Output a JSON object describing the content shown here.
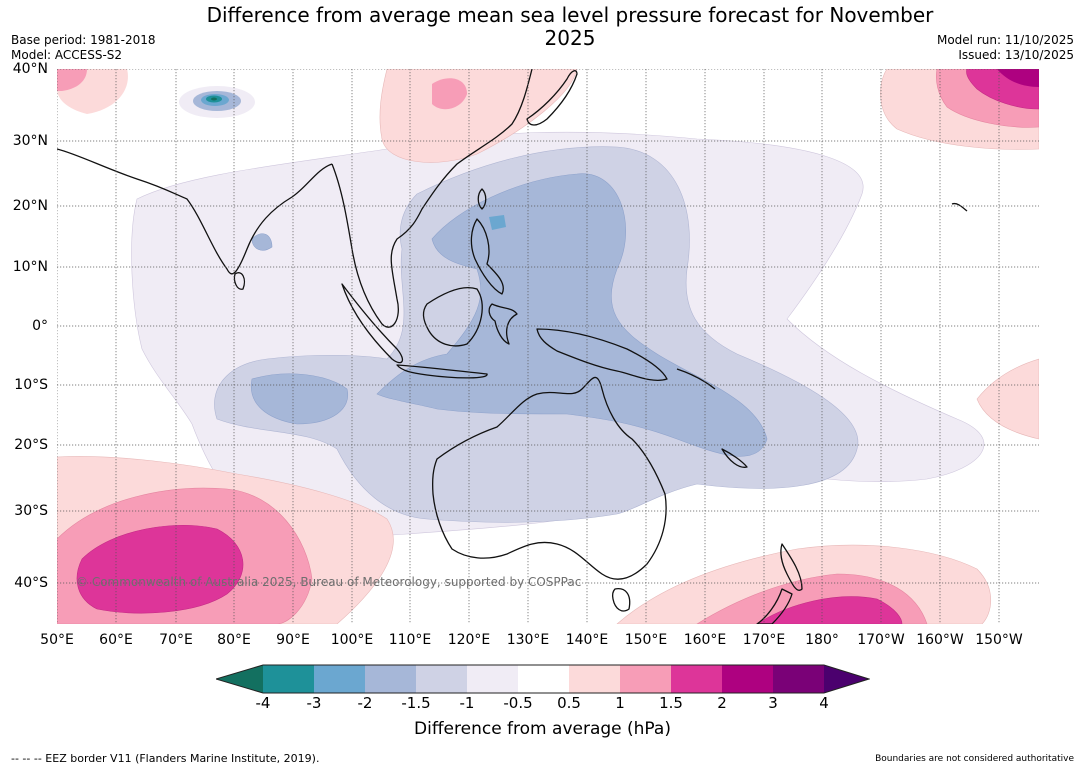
{
  "title": "Difference from average mean sea level pressure forecast for November 2025",
  "meta": {
    "base_period": "Base period: 1981-2018",
    "model": "Model: ACCESS-S2",
    "model_run": "Model run: 11/10/2025",
    "issued": "Issued: 13/10/2025"
  },
  "map": {
    "lat_labels": [
      "40°N",
      "30°N",
      "20°N",
      "10°N",
      "0°",
      "10°S",
      "20°S",
      "30°S",
      "40°S"
    ],
    "lon_labels": [
      "50°E",
      "60°E",
      "70°E",
      "80°E",
      "90°E",
      "100°E",
      "110°E",
      "120°E",
      "130°E",
      "140°E",
      "150°E",
      "160°E",
      "170°E",
      "180°",
      "170°W",
      "160°W",
      "150°W"
    ],
    "copyright": "© Commonwealth of Australia 2025, Bureau of Meteorology, supported by COSPPac",
    "colors": {
      "land_outline": "#111111",
      "grid": "#555555"
    }
  },
  "colorbar": {
    "ticks": [
      "-4",
      "-3",
      "-2",
      "-1.5",
      "-1",
      "-0.5",
      "0.5",
      "1",
      "1.5",
      "2",
      "3",
      "4"
    ],
    "colors": [
      "#137060",
      "#1e9199",
      "#6ba7d0",
      "#a6b7d8",
      "#cfd2e5",
      "#f0ecf5",
      "#ffffff",
      "#fcdada",
      "#f79db7",
      "#dd3599",
      "#ae0180",
      "#7a0177",
      "#4b006e"
    ],
    "label": "Difference from average (hPa)"
  },
  "footer": {
    "eez": "--  --  -- EEZ border V11 (Flanders Marine Institute, 2019).",
    "disclaimer": "Boundaries are not considered authoritative"
  }
}
